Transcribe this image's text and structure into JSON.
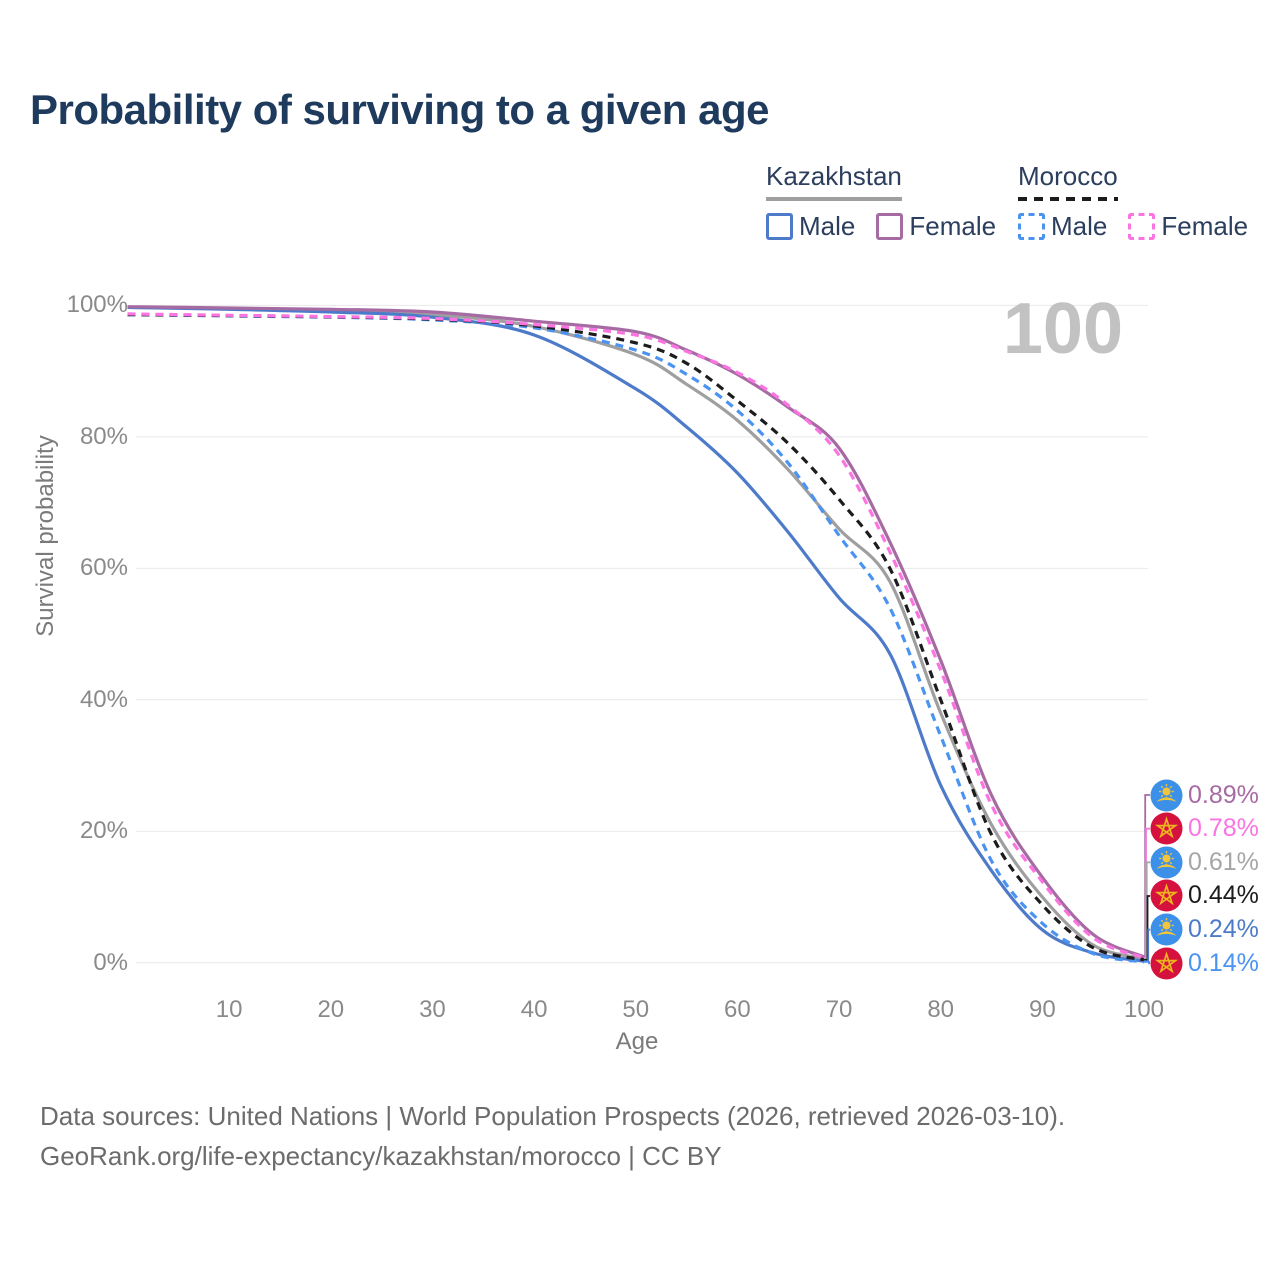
{
  "title": "Probability of surviving to a given age",
  "watermark": "100",
  "legend": {
    "groups": [
      {
        "country": "Kazakhstan",
        "style": "solid",
        "line_color": "#9f9f9f",
        "items": [
          {
            "label": "Male",
            "color": "#4d7ac9"
          },
          {
            "label": "Female",
            "color": "#a76ba3"
          }
        ]
      },
      {
        "country": "Morocco",
        "style": "dashed",
        "line_color": "#1c1c1c",
        "items": [
          {
            "label": "Male",
            "color": "#4b93f1"
          },
          {
            "label": "Female",
            "color": "#fb74e1"
          }
        ]
      }
    ]
  },
  "axes": {
    "x_title": "Age",
    "y_title": "Survival probability"
  },
  "footer": {
    "line1": "Data sources: United Nations | World Population Prospects (2026, retrieved 2026-03-10).",
    "line2": "GeoRank.org/life-expectancy/kazakhstan/morocco | CC BY"
  },
  "chart_data": {
    "type": "line",
    "title": "Probability of surviving to a given age",
    "xlabel": "Age",
    "ylabel": "Survival probability",
    "xlim": [
      0,
      100
    ],
    "ylim": [
      0,
      100
    ],
    "grid": "horizontal-only",
    "grid_color": "#e9e9e9",
    "legend_position": "top-right",
    "x": [
      0,
      10,
      20,
      30,
      40,
      50,
      55,
      60,
      65,
      70,
      75,
      80,
      85,
      90,
      95,
      100
    ],
    "xticks": [
      10,
      20,
      30,
      40,
      50,
      60,
      70,
      80,
      90,
      100
    ],
    "ytick_values": [
      0,
      20,
      40,
      60,
      80,
      100
    ],
    "ytick_labels": [
      "0%",
      "20%",
      "40%",
      "60%",
      "80%",
      "100%"
    ],
    "series": [
      {
        "name": "Kazakhstan Male",
        "country": "Kazakhstan",
        "sex": "Male",
        "color": "#4d7ac9",
        "dash": "solid",
        "end_value": "0.24%",
        "values": [
          99.7,
          99.4,
          99.0,
          98.2,
          95.5,
          87.3,
          81.5,
          74.5,
          65.5,
          55.5,
          47,
          27,
          14,
          5,
          1.5,
          0.24
        ]
      },
      {
        "name": "Kazakhstan Female",
        "country": "Kazakhstan",
        "sex": "Female",
        "color": "#a76ba3",
        "dash": "solid",
        "end_value": "0.89%",
        "values": [
          99.8,
          99.6,
          99.4,
          99.0,
          97.6,
          96.0,
          93.2,
          89.5,
          84.5,
          78.3,
          64,
          46,
          25.5,
          13,
          4.3,
          0.89
        ]
      },
      {
        "name": "Kazakhstan Both sexes",
        "country": "Kazakhstan",
        "sex": "Both",
        "color": "#9f9f9f",
        "dash": "solid",
        "end_value": "0.61%",
        "values": [
          99.7,
          99.5,
          99.2,
          98.6,
          96.8,
          92.5,
          88,
          82.5,
          75,
          66,
          58,
          38,
          21,
          10,
          2.7,
          0.61
        ]
      },
      {
        "name": "Morocco Male",
        "country": "Morocco",
        "sex": "Male",
        "color": "#4b93f1",
        "dash": "dashed",
        "end_value": "0.14%",
        "values": [
          98.6,
          98.4,
          98.2,
          97.8,
          96.6,
          93.2,
          89.5,
          84,
          76,
          65,
          54,
          34.5,
          15.5,
          6,
          1.4,
          0.14
        ]
      },
      {
        "name": "Morocco Female",
        "country": "Morocco",
        "sex": "Female",
        "color": "#fb74e1",
        "dash": "dashed",
        "end_value": "0.78%",
        "values": [
          98.7,
          98.5,
          98.3,
          98.0,
          97.1,
          95.5,
          93.0,
          89.8,
          84.8,
          77.2,
          62.5,
          44.5,
          24,
          12.3,
          3.8,
          0.78
        ]
      },
      {
        "name": "Morocco Both sexes",
        "country": "Morocco",
        "sex": "Both",
        "color": "#1c1c1c",
        "dash": "dashed",
        "end_value": "0.44%",
        "values": [
          98.6,
          98.45,
          98.25,
          97.9,
          96.9,
          94.3,
          91.2,
          85.5,
          79,
          70.5,
          60,
          40,
          19.5,
          8.8,
          2.3,
          0.44
        ]
      }
    ],
    "end_labels": [
      {
        "value": "0.89%",
        "numeric": 0.89,
        "flag": "kazakhstan",
        "series": "Kazakhstan Female",
        "color": "#a76ba3"
      },
      {
        "value": "0.78%",
        "numeric": 0.78,
        "flag": "morocco",
        "series": "Morocco Female",
        "color": "#fb74e1"
      },
      {
        "value": "0.61%",
        "numeric": 0.61,
        "flag": "kazakhstan",
        "series": "Kazakhstan Both sexes",
        "color": "#a6a6a6"
      },
      {
        "value": "0.44%",
        "numeric": 0.44,
        "flag": "morocco",
        "series": "Morocco Both sexes",
        "color": "#1c1c1c"
      },
      {
        "value": "0.24%",
        "numeric": 0.24,
        "flag": "kazakhstan",
        "series": "Kazakhstan Male",
        "color": "#4d7ac9"
      },
      {
        "value": "0.14%",
        "numeric": 0.14,
        "flag": "morocco",
        "series": "Morocco Male",
        "color": "#4b93f1"
      }
    ]
  }
}
